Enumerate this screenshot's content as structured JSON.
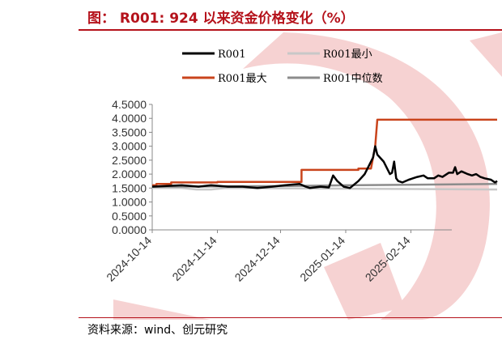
{
  "header": {
    "title": "图：  R001: 924 以来资金价格变化（%）"
  },
  "footer": {
    "source": "资料来源：wind、创元研究"
  },
  "colors": {
    "accent": "#b5121b",
    "watermark": "#f6d2d2"
  },
  "chart_data": {
    "type": "line",
    "title": "",
    "xlabel": "",
    "ylabel": "",
    "ylim": [
      0,
      4.5
    ],
    "yticks": [
      "4.5000",
      "4.0000",
      "3.5000",
      "3.0000",
      "2.5000",
      "2.0000",
      "1.5000",
      "1.0000",
      "0.5000",
      "0.0000"
    ],
    "xticks": [
      "2024-10-14",
      "2024-11-14",
      "2024-12-14",
      "2025-01-14",
      "2025-02-14"
    ],
    "grid": false,
    "legend_position": "top",
    "series": [
      {
        "name": "R001",
        "color": "#000000",
        "points": [
          [
            "2024-10-14",
            1.55
          ],
          [
            "2024-10-28",
            1.6
          ],
          [
            "2024-11-05",
            1.55
          ],
          [
            "2024-11-11",
            1.6
          ],
          [
            "2024-11-19",
            1.55
          ],
          [
            "2024-11-26",
            1.55
          ],
          [
            "2024-12-03",
            1.5
          ],
          [
            "2024-12-10",
            1.55
          ],
          [
            "2024-12-16",
            1.6
          ],
          [
            "2024-12-23",
            1.65
          ],
          [
            "2024-12-26",
            1.55
          ],
          [
            "2024-12-28",
            1.5
          ],
          [
            "2025-01-02",
            1.55
          ],
          [
            "2025-01-06",
            1.52
          ],
          [
            "2025-01-08",
            1.95
          ],
          [
            "2025-01-10",
            1.75
          ],
          [
            "2025-01-13",
            1.55
          ],
          [
            "2025-01-16",
            1.5
          ],
          [
            "2025-01-20",
            1.75
          ],
          [
            "2025-01-23",
            2.0
          ],
          [
            "2025-01-25",
            2.3
          ],
          [
            "2025-01-27",
            2.6
          ],
          [
            "2025-01-28",
            3.0
          ],
          [
            "2025-01-29",
            2.7
          ],
          [
            "2025-02-01",
            2.45
          ],
          [
            "2025-02-03",
            2.15
          ],
          [
            "2025-02-04",
            2.0
          ],
          [
            "2025-02-05",
            2.05
          ],
          [
            "2025-02-06",
            2.45
          ],
          [
            "2025-02-07",
            1.85
          ],
          [
            "2025-02-08",
            1.75
          ],
          [
            "2025-02-10",
            1.7
          ],
          [
            "2025-02-13",
            1.8
          ],
          [
            "2025-02-17",
            1.9
          ],
          [
            "2025-02-20",
            1.95
          ],
          [
            "2025-02-22",
            1.85
          ],
          [
            "2025-02-25",
            1.85
          ],
          [
            "2025-02-27",
            1.95
          ],
          [
            "2025-03-01",
            1.9
          ],
          [
            "2025-03-04",
            2.05
          ],
          [
            "2025-03-06",
            2.05
          ],
          [
            "2025-03-07",
            2.25
          ],
          [
            "2025-03-08",
            2.0
          ],
          [
            "2025-03-10",
            2.1
          ],
          [
            "2025-03-13",
            2.0
          ],
          [
            "2025-03-15",
            1.95
          ],
          [
            "2025-03-17",
            2.0
          ],
          [
            "2025-03-19",
            1.9
          ],
          [
            "2025-03-21",
            1.85
          ],
          [
            "2025-03-24",
            1.8
          ],
          [
            "2025-03-26",
            1.7
          ],
          [
            "2025-03-27",
            1.75
          ]
        ]
      },
      {
        "name": "R001最小",
        "color": "#c8c8c8",
        "points": [
          [
            "2024-10-14",
            1.5
          ],
          [
            "2024-10-28",
            1.5
          ],
          [
            "2024-11-04",
            1.45
          ],
          [
            "2024-11-11",
            1.45
          ],
          [
            "2024-11-18",
            1.5
          ],
          [
            "2025-03-27",
            1.45
          ]
        ]
      },
      {
        "name": "R001最大",
        "color": "#c9441c",
        "points": [
          [
            "2024-10-14",
            1.6
          ],
          [
            "2024-10-16",
            1.6
          ],
          [
            "2024-10-16",
            1.65
          ],
          [
            "2024-10-23",
            1.65
          ],
          [
            "2024-10-23",
            1.7
          ],
          [
            "2024-11-14",
            1.7
          ],
          [
            "2024-11-14",
            1.72
          ],
          [
            "2024-12-24",
            1.72
          ],
          [
            "2024-12-24",
            2.15
          ],
          [
            "2025-01-20",
            2.15
          ],
          [
            "2025-01-20",
            2.2
          ],
          [
            "2025-01-26",
            2.2
          ],
          [
            "2025-01-28",
            3.0
          ],
          [
            "2025-01-29",
            3.95
          ],
          [
            "2025-03-27",
            3.95
          ]
        ]
      },
      {
        "name": "R001中位数",
        "color": "#8c8c8c",
        "points": [
          [
            "2024-10-14",
            1.55
          ],
          [
            "2024-11-14",
            1.56
          ],
          [
            "2024-12-14",
            1.57
          ],
          [
            "2025-01-14",
            1.6
          ],
          [
            "2025-02-14",
            1.62
          ],
          [
            "2025-03-27",
            1.65
          ]
        ]
      }
    ]
  }
}
